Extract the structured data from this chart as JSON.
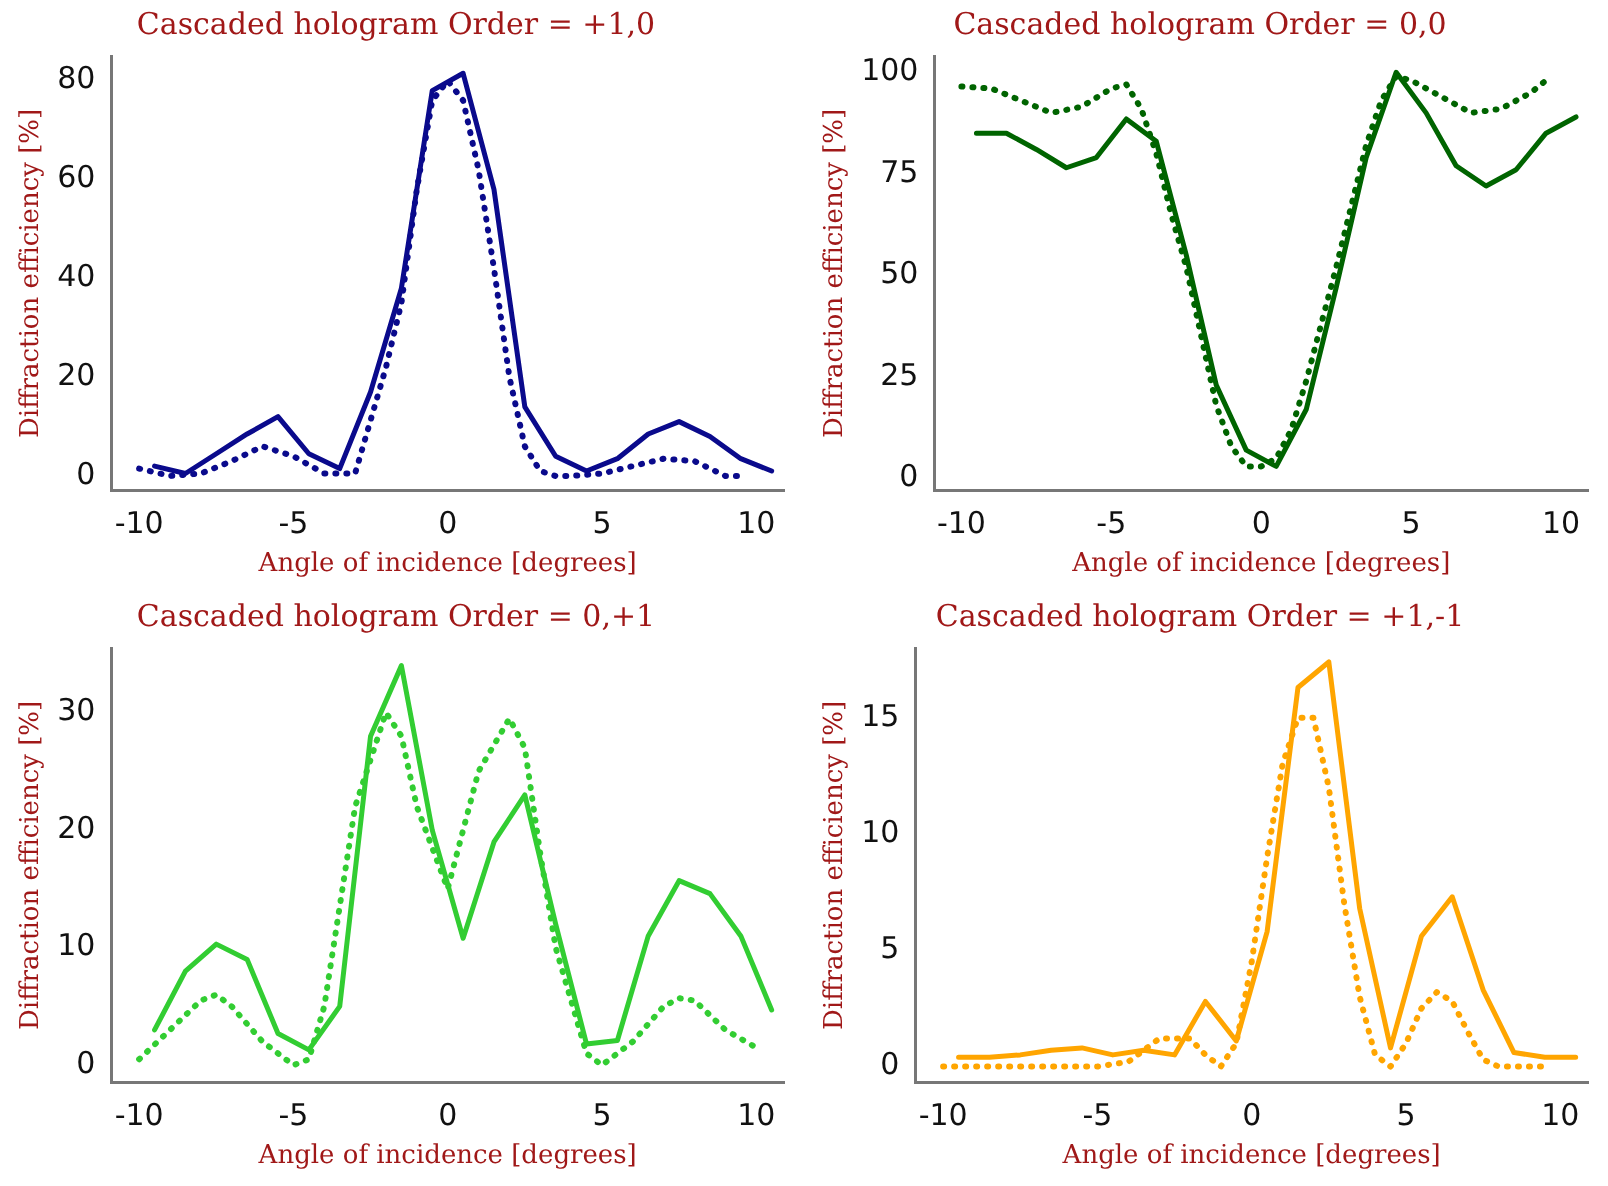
{
  "chart_data": [
    {
      "type": "line",
      "title": "Cascaded hologram Order = +1,0",
      "xlabel": "Angle of incidence [degrees]",
      "ylabel": "Diffraction efficiency [%]",
      "xlim": [
        -10.9,
        10.9
      ],
      "xticks": [
        -10,
        -5,
        0,
        5,
        10
      ],
      "ylim": [
        -3,
        85
      ],
      "yticks": [
        0,
        20,
        40,
        60,
        80
      ],
      "grid": false,
      "legend": false,
      "marker": "none",
      "series": [
        {
          "color": "#0a0a8c",
          "line_style": "solid",
          "x": [
            -9.5,
            -8.5,
            -7.5,
            -6.5,
            -5.5,
            -4.5,
            -3.5,
            -2.5,
            -1.5,
            -0.5,
            0.5,
            1.5,
            2.5,
            3.5,
            4.5,
            5.5,
            6.5,
            7.5,
            8.5,
            9.5,
            10.5
          ],
          "values": [
            2,
            0.5,
            4.5,
            8.5,
            12,
            4.5,
            1.5,
            17,
            38,
            78,
            81.5,
            58,
            14,
            4,
            1,
            3.5,
            8.5,
            11,
            8,
            3.5,
            1
          ]
        },
        {
          "color": "#0a0a8c",
          "line_style": "dotted",
          "x": [
            -10,
            -9,
            -8,
            -7,
            -6,
            -5,
            -4,
            -3,
            -2,
            -1.5,
            -1,
            -0.5,
            0,
            0.5,
            1,
            1.5,
            2,
            2.5,
            3,
            3.5,
            4,
            5,
            6,
            7,
            8,
            9,
            9.5
          ],
          "values": [
            1.5,
            0,
            0.5,
            3,
            6,
            4,
            0.5,
            0.5,
            22,
            35,
            58,
            76,
            80,
            76,
            62,
            42,
            20,
            6,
            1,
            0,
            0,
            0.5,
            2,
            3.5,
            3,
            0,
            0
          ]
        }
      ]
    },
    {
      "type": "line",
      "title": "Cascaded hologram Order = 0,0",
      "xlabel": "Angle of incidence [degrees]",
      "ylabel": "Diffraction efficiency [%]",
      "xlim": [
        -10.9,
        10.9
      ],
      "xticks": [
        -10,
        -5,
        0,
        5,
        10
      ],
      "ylim": [
        -3,
        104
      ],
      "yticks": [
        0,
        25,
        50,
        75,
        100
      ],
      "grid": false,
      "legend": false,
      "marker": "none",
      "series": [
        {
          "color": "#006400",
          "line_style": "solid",
          "x": [
            -9.5,
            -8.5,
            -7.5,
            -6.5,
            -5.5,
            -4.5,
            -3.5,
            -2.5,
            -1.5,
            -0.5,
            0.5,
            1.5,
            2.5,
            3.5,
            4.5,
            5.5,
            6.5,
            7.5,
            8.5,
            9.5,
            10.5
          ],
          "values": [
            85,
            85,
            81,
            76.5,
            79,
            88.5,
            83,
            55,
            23,
            7,
            3,
            17,
            47,
            79,
            100,
            90,
            77,
            72,
            76,
            85,
            89
          ]
        },
        {
          "color": "#006400",
          "line_style": "dotted",
          "x": [
            -10,
            -9,
            -8,
            -7,
            -6,
            -5,
            -4.5,
            -4,
            -3.5,
            -3,
            -2.5,
            -2,
            -1.5,
            -1,
            -0.5,
            0,
            0.5,
            1,
            1.5,
            2,
            2.5,
            3,
            3.5,
            4,
            4.5,
            5,
            6,
            7,
            8,
            9,
            9.5
          ],
          "values": [
            96.5,
            96,
            93,
            90,
            91.5,
            96,
            97,
            91,
            80,
            65,
            52,
            35,
            18,
            8,
            3,
            3,
            5,
            12,
            24,
            38,
            52,
            67,
            82,
            93,
            99,
            98,
            94,
            90,
            91,
            95,
            98
          ]
        }
      ]
    },
    {
      "type": "line",
      "title": "Cascaded hologram Order = 0,+1",
      "xlabel": "Angle of incidence [degrees]",
      "ylabel": "Diffraction efficiency [%]",
      "xlim": [
        -10.9,
        10.9
      ],
      "xticks": [
        -10,
        -5,
        0,
        5,
        10
      ],
      "ylim": [
        -1.5,
        35.5
      ],
      "yticks": [
        0,
        10,
        20,
        30
      ],
      "grid": false,
      "legend": false,
      "marker": "none",
      "series": [
        {
          "color": "#32cd32",
          "line_style": "solid",
          "x": [
            -9.5,
            -8.5,
            -7.5,
            -6.5,
            -5.5,
            -4.5,
            -3.5,
            -2.5,
            -1.5,
            -0.5,
            0.5,
            1.5,
            2.5,
            3.5,
            4.5,
            5.5,
            6.5,
            7.5,
            8.5,
            9.5,
            10.5
          ],
          "values": [
            3,
            8,
            10.3,
            9,
            2.7,
            1.3,
            5,
            28,
            34,
            20,
            10.8,
            19,
            23,
            12,
            1.8,
            2.1,
            11,
            15.7,
            14.6,
            11,
            4.7
          ]
        },
        {
          "color": "#32cd32",
          "line_style": "dotted",
          "x": [
            -10,
            -9,
            -8,
            -7.5,
            -7,
            -6,
            -5,
            -4.5,
            -4,
            -3,
            -2,
            -1.5,
            -1,
            0,
            1,
            2,
            2.5,
            3,
            3.5,
            4.5,
            5,
            6,
            7,
            7.5,
            8,
            9,
            10
          ],
          "values": [
            0.5,
            3,
            5.5,
            6,
            5,
            2,
            0,
            0.5,
            5,
            22,
            30,
            28,
            22,
            15,
            25,
            29.5,
            27,
            18,
            10,
            1,
            0,
            2,
            5,
            5.7,
            5.5,
            3,
            1.5
          ]
        }
      ]
    },
    {
      "type": "line",
      "title": "Cascaded hologram Order = +1,-1",
      "xlabel": "Angle of incidence [degrees]",
      "ylabel": "Diffraction efficiency [%]",
      "xlim": [
        -10.9,
        10.9
      ],
      "xticks": [
        -10,
        -5,
        0,
        5,
        10
      ],
      "ylim": [
        -0.7,
        18
      ],
      "yticks": [
        0,
        5,
        10,
        15
      ],
      "grid": false,
      "legend": false,
      "marker": "none",
      "series": [
        {
          "color": "#ffa500",
          "line_style": "solid",
          "x": [
            -9.5,
            -8.5,
            -7.5,
            -6.5,
            -5.5,
            -4.5,
            -3.5,
            -2.5,
            -1.5,
            -0.5,
            0.5,
            1.5,
            2.5,
            3.5,
            4.5,
            5.5,
            6.5,
            7.5,
            8.5,
            9.5,
            10.5
          ],
          "values": [
            0.4,
            0.4,
            0.5,
            0.7,
            0.8,
            0.5,
            0.7,
            0.5,
            2.8,
            1.1,
            5.8,
            16.3,
            17.4,
            6.8,
            0.8,
            5.6,
            7.3,
            3.3,
            0.6,
            0.4,
            0.4
          ]
        },
        {
          "color": "#ffa500",
          "line_style": "dotted",
          "x": [
            -10,
            -9,
            -8,
            -7,
            -6,
            -5,
            -4,
            -3,
            -2,
            -1.5,
            -1,
            -0.5,
            0,
            0.5,
            1,
            1.5,
            2,
            2.5,
            3,
            3.5,
            4,
            4.5,
            5,
            5.5,
            6,
            6.5,
            7,
            7.5,
            8,
            9,
            9.5
          ],
          "values": [
            0,
            0,
            0,
            0,
            0,
            0,
            0.2,
            1.2,
            1.2,
            0.5,
            0,
            1,
            4.5,
            9,
            13,
            15,
            15,
            12,
            7,
            3,
            0.5,
            0,
            1,
            2.5,
            3.2,
            2.8,
            1.5,
            0.3,
            0,
            0,
            0
          ]
        }
      ]
    }
  ]
}
